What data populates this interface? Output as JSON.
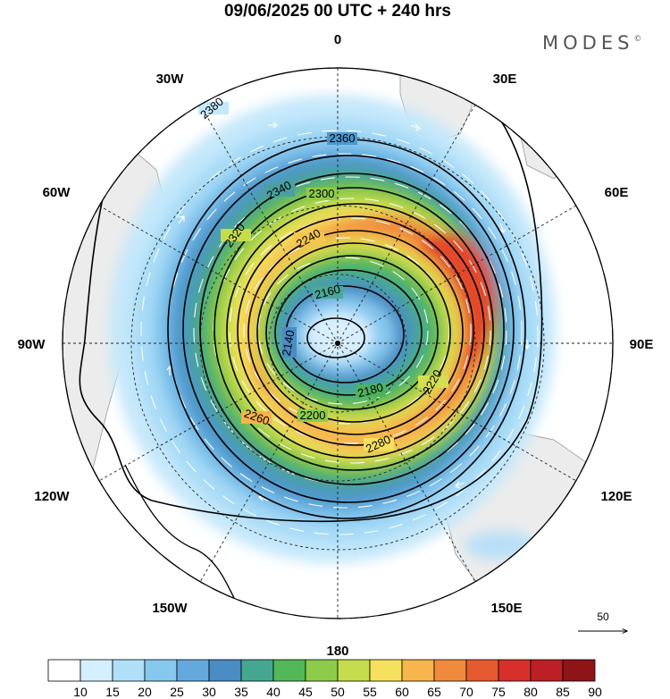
{
  "title": "09/06/2025  00 UTC  + 240 hrs",
  "brand": "MODES",
  "brand_mark": "©",
  "longitude_labels": {
    "n": "0",
    "ne": "30E",
    "ene": "60E",
    "e": "90E",
    "ese": "120E",
    "se": "150E",
    "s": "180",
    "sw": "150W",
    "wsw": "120W",
    "w": "90W",
    "wnw": "60W",
    "nw": "30W"
  },
  "contour_labels": [
    "2380",
    "2360",
    "2340",
    "2320",
    "2300",
    "2280",
    "2260",
    "2240",
    "2220",
    "2200",
    "2180",
    "2160",
    "2140"
  ],
  "vector_reference": {
    "label": "50"
  },
  "colorbar": {
    "ticks": [
      "10",
      "15",
      "20",
      "25",
      "30",
      "35",
      "40",
      "45",
      "50",
      "55",
      "60",
      "65",
      "70",
      "75",
      "80",
      "85",
      "90"
    ],
    "colors": [
      "#ffffff",
      "#d4efff",
      "#b0e0f8",
      "#86c8ee",
      "#63a9dd",
      "#4a8cc4",
      "#46a790",
      "#52b858",
      "#8ccc4a",
      "#c5dc4c",
      "#f6e15e",
      "#f6b64d",
      "#f08a3c",
      "#e55a2e",
      "#d7302a",
      "#bc1f26",
      "#8e1418"
    ]
  },
  "colors": {
    "land": "#efefef",
    "contour": "#000000",
    "wind_arrow": "#ffffff"
  }
}
